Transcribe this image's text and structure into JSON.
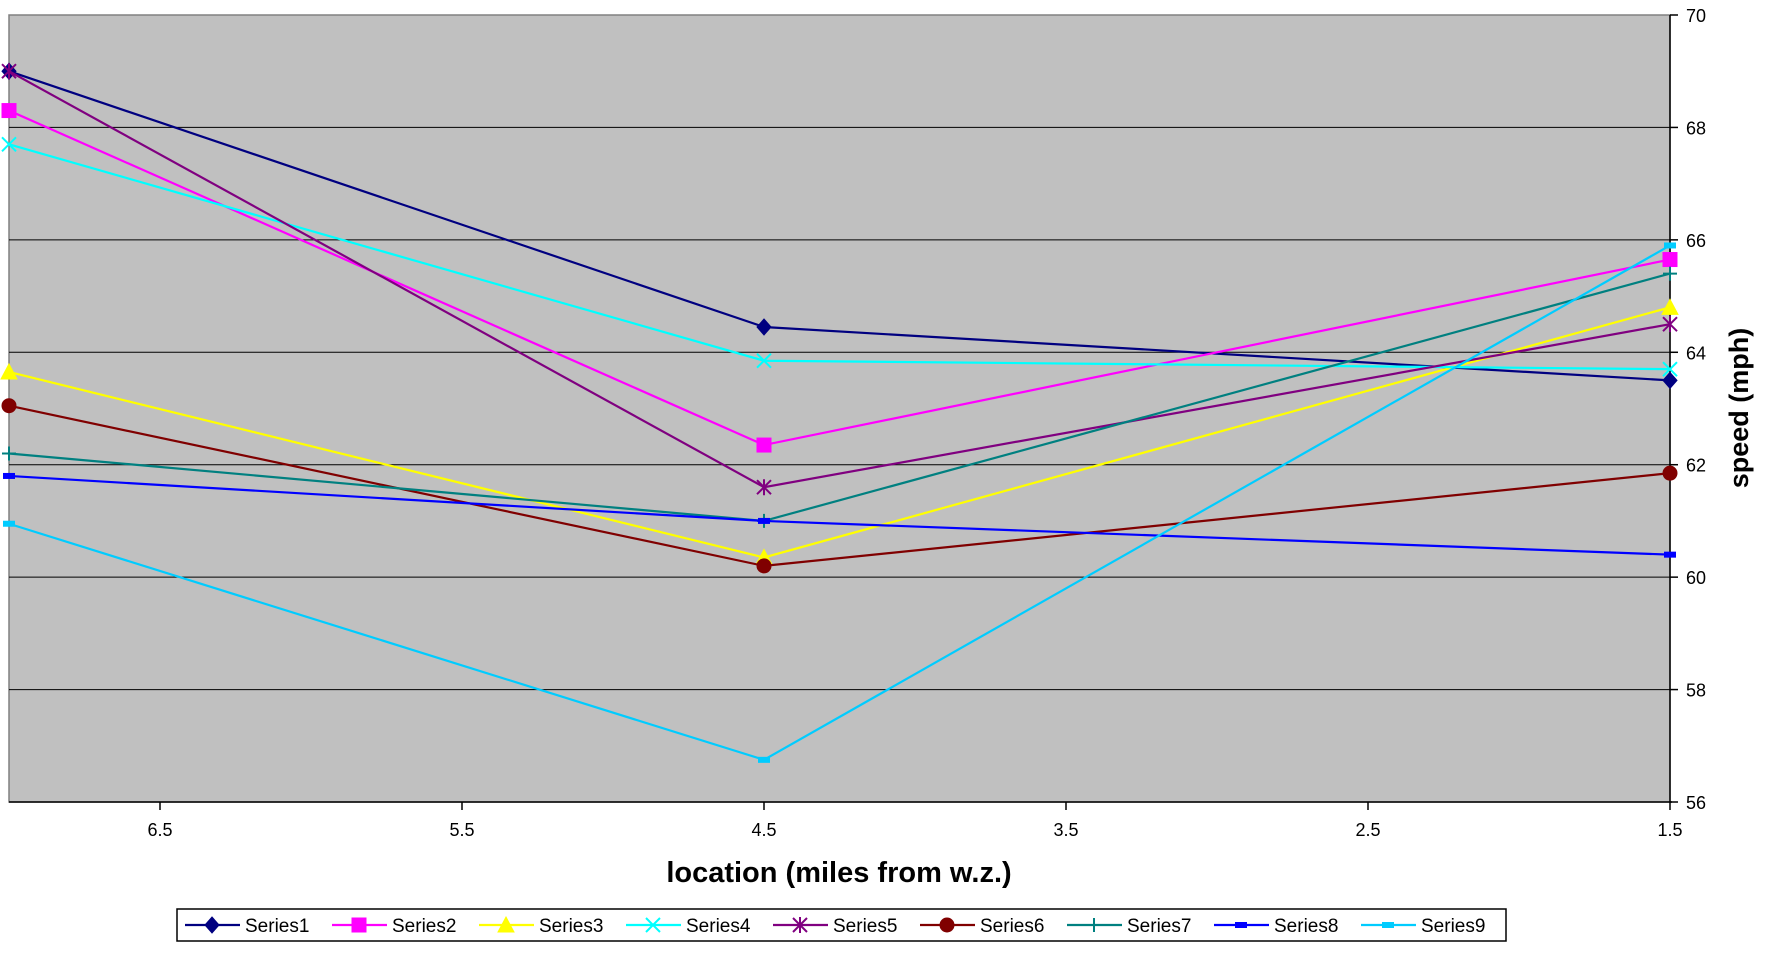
{
  "chart_data": {
    "type": "line",
    "xlabel": "location (miles from w.z.)",
    "ylabel": "speed (mph)",
    "x": [
      7.0,
      4.5,
      1.5
    ],
    "xlim": [
      7.0,
      1.5
    ],
    "x_reversed": true,
    "xticks": [
      "6.5",
      "5.5",
      "4.5",
      "3.5",
      "2.5",
      "1.5"
    ],
    "ylim": [
      56,
      70
    ],
    "yticks": [
      "56",
      "58",
      "60",
      "62",
      "64",
      "66",
      "68",
      "70"
    ],
    "y_axis_side": "right",
    "grid": "horizontal",
    "plot_background": "#c0c0c0",
    "legend_position": "bottom",
    "series": [
      {
        "name": "Series1",
        "values": [
          69.0,
          64.45,
          63.5
        ],
        "color": "#000080",
        "marker": "diamond"
      },
      {
        "name": "Series2",
        "values": [
          68.3,
          62.35,
          65.65
        ],
        "color": "#ff00ff",
        "marker": "square"
      },
      {
        "name": "Series3",
        "values": [
          63.65,
          60.35,
          64.8
        ],
        "color": "#ffff00",
        "marker": "triangle"
      },
      {
        "name": "Series4",
        "values": [
          67.7,
          63.85,
          63.7
        ],
        "color": "#00ffff",
        "marker": "x"
      },
      {
        "name": "Series5",
        "values": [
          69.0,
          61.6,
          64.5
        ],
        "color": "#800080",
        "marker": "star"
      },
      {
        "name": "Series6",
        "values": [
          63.05,
          60.2,
          61.85
        ],
        "color": "#800000",
        "marker": "circle"
      },
      {
        "name": "Series7",
        "values": [
          62.2,
          61.0,
          65.4
        ],
        "color": "#008080",
        "marker": "plus"
      },
      {
        "name": "Series8",
        "values": [
          61.8,
          61.0,
          60.4
        ],
        "color": "#0000ff",
        "marker": "dash"
      },
      {
        "name": "Series9",
        "values": [
          60.95,
          56.75,
          65.9
        ],
        "color": "#00ccff",
        "marker": "dash"
      }
    ]
  }
}
